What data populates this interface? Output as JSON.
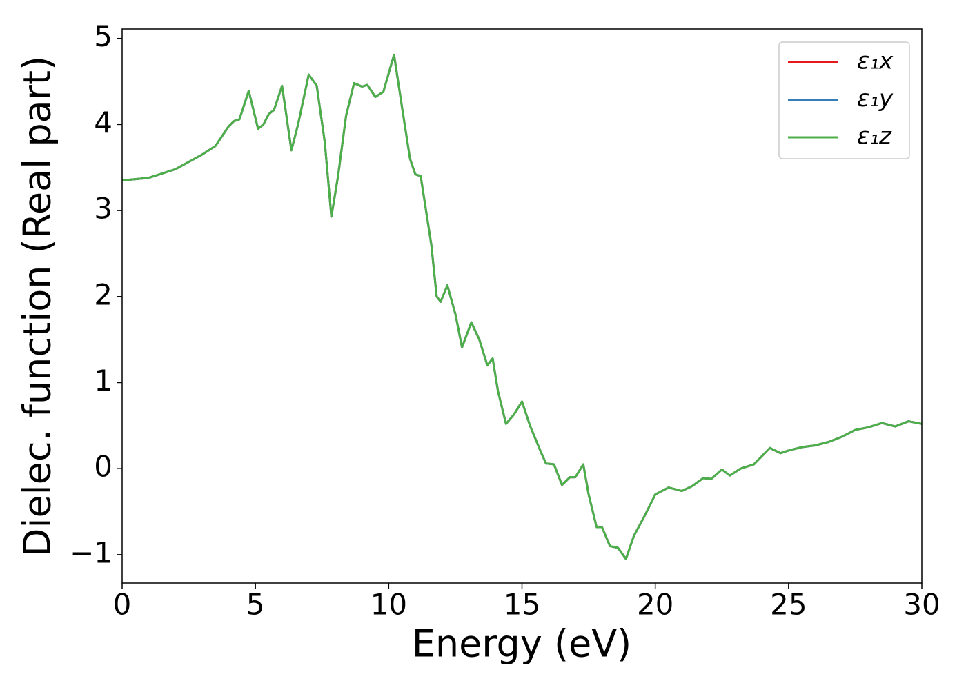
{
  "chart_data": {
    "type": "line",
    "xlabel": "Energy (eV)",
    "ylabel": "Dielec. function (Real part)",
    "x": [
      0,
      1,
      2,
      3,
      3.5,
      4,
      4.2,
      4.4,
      4.75,
      5.1,
      5.3,
      5.5,
      5.7,
      6.0,
      6.35,
      6.6,
      7.0,
      7.3,
      7.6,
      7.85,
      8.1,
      8.4,
      8.7,
      9.0,
      9.2,
      9.5,
      9.8,
      10.2,
      10.5,
      10.8,
      11.0,
      11.2,
      11.4,
      11.6,
      11.8,
      11.95,
      12.2,
      12.5,
      12.75,
      13.1,
      13.4,
      13.7,
      13.9,
      14.1,
      14.4,
      14.7,
      15.0,
      15.3,
      15.7,
      15.9,
      16.2,
      16.5,
      16.8,
      17.0,
      17.3,
      17.5,
      17.8,
      18.0,
      18.3,
      18.6,
      18.9,
      19.2,
      19.6,
      20.0,
      20.5,
      21.0,
      21.4,
      21.8,
      22.1,
      22.5,
      22.8,
      23.2,
      23.7,
      24.3,
      24.7,
      25.0,
      25.5,
      26.0,
      26.5,
      27.0,
      27.5,
      28.0,
      28.5,
      29.0,
      29.5,
      30
    ],
    "series": [
      {
        "name": "ε₁x",
        "color": "#e41a1c",
        "values": [
          3.35,
          3.38,
          3.48,
          3.65,
          3.75,
          3.98,
          4.04,
          4.06,
          4.39,
          3.95,
          4.0,
          4.12,
          4.17,
          4.45,
          3.7,
          4.0,
          4.58,
          4.45,
          3.8,
          2.93,
          3.4,
          4.1,
          4.48,
          4.44,
          4.46,
          4.32,
          4.38,
          4.81,
          4.2,
          3.6,
          3.42,
          3.4,
          3.0,
          2.6,
          2.0,
          1.94,
          2.13,
          1.8,
          1.41,
          1.7,
          1.5,
          1.2,
          1.28,
          0.9,
          0.52,
          0.63,
          0.78,
          0.5,
          0.2,
          0.06,
          0.05,
          -0.19,
          -0.1,
          -0.1,
          0.05,
          -0.3,
          -0.68,
          -0.68,
          -0.9,
          -0.92,
          -1.05,
          -0.78,
          -0.55,
          -0.3,
          -0.22,
          -0.26,
          -0.2,
          -0.11,
          -0.12,
          -0.01,
          -0.08,
          0,
          0.05,
          0.24,
          0.18,
          0.21,
          0.25,
          0.27,
          0.31,
          0.37,
          0.45,
          0.48,
          0.53,
          0.49,
          0.55,
          0.52
        ]
      },
      {
        "name": "ε₁y",
        "color": "#377eb8",
        "values": [
          3.35,
          3.38,
          3.48,
          3.65,
          3.75,
          3.98,
          4.04,
          4.06,
          4.39,
          3.95,
          4.0,
          4.12,
          4.17,
          4.45,
          3.7,
          4.0,
          4.58,
          4.45,
          3.8,
          2.93,
          3.4,
          4.1,
          4.48,
          4.44,
          4.46,
          4.32,
          4.38,
          4.81,
          4.2,
          3.6,
          3.42,
          3.4,
          3.0,
          2.6,
          2.0,
          1.94,
          2.13,
          1.8,
          1.41,
          1.7,
          1.5,
          1.2,
          1.28,
          0.9,
          0.52,
          0.63,
          0.78,
          0.5,
          0.2,
          0.06,
          0.05,
          -0.19,
          -0.1,
          -0.1,
          0.05,
          -0.3,
          -0.68,
          -0.68,
          -0.9,
          -0.92,
          -1.05,
          -0.78,
          -0.55,
          -0.3,
          -0.22,
          -0.26,
          -0.2,
          -0.11,
          -0.12,
          -0.01,
          -0.08,
          0,
          0.05,
          0.24,
          0.18,
          0.21,
          0.25,
          0.27,
          0.31,
          0.37,
          0.45,
          0.48,
          0.53,
          0.49,
          0.55,
          0.52
        ]
      },
      {
        "name": "ε₁z",
        "color": "#4daf4a",
        "values": [
          3.35,
          3.38,
          3.48,
          3.65,
          3.75,
          3.98,
          4.04,
          4.06,
          4.39,
          3.95,
          4.0,
          4.12,
          4.17,
          4.45,
          3.7,
          4.0,
          4.58,
          4.45,
          3.8,
          2.93,
          3.4,
          4.1,
          4.48,
          4.44,
          4.46,
          4.32,
          4.38,
          4.81,
          4.2,
          3.6,
          3.42,
          3.4,
          3.0,
          2.6,
          2.0,
          1.94,
          2.13,
          1.8,
          1.41,
          1.7,
          1.5,
          1.2,
          1.28,
          0.9,
          0.52,
          0.63,
          0.78,
          0.5,
          0.2,
          0.06,
          0.05,
          -0.19,
          -0.1,
          -0.1,
          0.05,
          -0.3,
          -0.68,
          -0.68,
          -0.9,
          -0.92,
          -1.05,
          -0.78,
          -0.55,
          -0.3,
          -0.22,
          -0.26,
          -0.2,
          -0.11,
          -0.12,
          -0.01,
          -0.08,
          0,
          0.05,
          0.24,
          0.18,
          0.21,
          0.25,
          0.27,
          0.31,
          0.37,
          0.45,
          0.48,
          0.53,
          0.49,
          0.55,
          0.52
        ]
      }
    ],
    "xlim": [
      0,
      30
    ],
    "xticks": [
      0,
      5,
      10,
      15,
      20,
      25,
      30
    ],
    "ylim": [
      -1.33,
      5.11
    ],
    "yticks": [
      {
        "value": -1,
        "label": "−1"
      },
      0,
      1,
      2,
      3,
      4,
      5
    ],
    "grid": false,
    "legend": "upper right"
  }
}
